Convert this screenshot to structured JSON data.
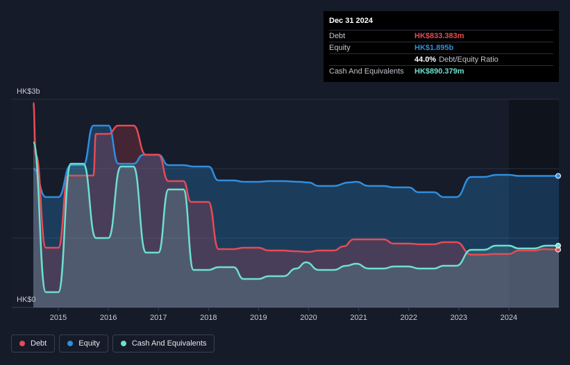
{
  "tooltip": {
    "date": "Dec 31 2024",
    "debt_label": "Debt",
    "debt_value": "HK$833.383m",
    "equity_label": "Equity",
    "equity_value": "HK$1.895b",
    "ratio_value": "44.0%",
    "ratio_label": "Debt/Equity Ratio",
    "cash_label": "Cash And Equivalents",
    "cash_value": "HK$890.379m"
  },
  "colors": {
    "debt": "#e64b55",
    "equity": "#2f8ee0",
    "cash": "#6de0d0",
    "background": "#151b28"
  },
  "legend": [
    {
      "name": "Debt",
      "color": "#e64b55"
    },
    {
      "name": "Equity",
      "color": "#2f8ee0"
    },
    {
      "name": "Cash And Equivalents",
      "color": "#6de0d0"
    }
  ],
  "chart_data": {
    "type": "area",
    "y_unit": "HK$b",
    "ylim": [
      0,
      3
    ],
    "xlim": [
      2014.5,
      2025.0
    ],
    "y_tick_labels": [
      {
        "value": 3,
        "label": "HK$3b"
      },
      {
        "value": 0,
        "label": "HK$0"
      }
    ],
    "x_tick_labels": [
      "2015",
      "2016",
      "2017",
      "2018",
      "2019",
      "2020",
      "2021",
      "2022",
      "2023",
      "2024"
    ],
    "x_ticks": [
      2015,
      2016,
      2017,
      2018,
      2019,
      2020,
      2021,
      2022,
      2023,
      2024
    ],
    "grid": "horizontal",
    "highlight_from": 2024.0,
    "series": [
      {
        "name": "Debt",
        "points": [
          [
            2014.5,
            2.95
          ],
          [
            2014.55,
            2.2
          ],
          [
            2014.75,
            0.86
          ],
          [
            2015.0,
            0.86
          ],
          [
            2015.2,
            1.9
          ],
          [
            2015.5,
            1.9
          ],
          [
            2015.7,
            1.9
          ],
          [
            2015.75,
            2.5
          ],
          [
            2016.0,
            2.5
          ],
          [
            2016.2,
            2.62
          ],
          [
            2016.5,
            2.62
          ],
          [
            2016.75,
            2.2
          ],
          [
            2017.0,
            2.2
          ],
          [
            2017.2,
            1.82
          ],
          [
            2017.5,
            1.82
          ],
          [
            2017.65,
            1.52
          ],
          [
            2018.0,
            1.52
          ],
          [
            2018.2,
            0.84
          ],
          [
            2018.5,
            0.84
          ],
          [
            2018.7,
            0.86
          ],
          [
            2019.0,
            0.86
          ],
          [
            2019.2,
            0.82
          ],
          [
            2019.5,
            0.82
          ],
          [
            2019.7,
            0.81
          ],
          [
            2020.0,
            0.8
          ],
          [
            2020.2,
            0.82
          ],
          [
            2020.5,
            0.82
          ],
          [
            2020.7,
            0.88
          ],
          [
            2020.9,
            0.98
          ],
          [
            2021.2,
            0.98
          ],
          [
            2021.5,
            0.98
          ],
          [
            2021.7,
            0.92
          ],
          [
            2022.0,
            0.92
          ],
          [
            2022.2,
            0.91
          ],
          [
            2022.5,
            0.91
          ],
          [
            2022.7,
            0.94
          ],
          [
            2022.95,
            0.94
          ],
          [
            2023.25,
            0.76
          ],
          [
            2023.5,
            0.76
          ],
          [
            2023.7,
            0.77
          ],
          [
            2024.0,
            0.77
          ],
          [
            2024.2,
            0.82
          ],
          [
            2024.5,
            0.82
          ],
          [
            2024.7,
            0.84
          ],
          [
            2025.0,
            0.833
          ]
        ]
      },
      {
        "name": "Equity",
        "points": [
          [
            2014.5,
            2.0
          ],
          [
            2014.75,
            1.59
          ],
          [
            2015.0,
            1.59
          ],
          [
            2015.25,
            2.05
          ],
          [
            2015.5,
            2.05
          ],
          [
            2015.7,
            2.62
          ],
          [
            2016.0,
            2.62
          ],
          [
            2016.2,
            2.07
          ],
          [
            2016.5,
            2.07
          ],
          [
            2016.7,
            2.2
          ],
          [
            2017.0,
            2.2
          ],
          [
            2017.2,
            2.05
          ],
          [
            2017.5,
            2.05
          ],
          [
            2017.7,
            2.03
          ],
          [
            2018.0,
            2.03
          ],
          [
            2018.2,
            1.83
          ],
          [
            2018.5,
            1.83
          ],
          [
            2018.7,
            1.81
          ],
          [
            2019.0,
            1.81
          ],
          [
            2019.2,
            1.82
          ],
          [
            2019.5,
            1.82
          ],
          [
            2019.8,
            1.81
          ],
          [
            2020.0,
            1.8
          ],
          [
            2020.2,
            1.75
          ],
          [
            2020.5,
            1.75
          ],
          [
            2020.8,
            1.8
          ],
          [
            2020.95,
            1.81
          ],
          [
            2021.2,
            1.75
          ],
          [
            2021.5,
            1.75
          ],
          [
            2021.7,
            1.73
          ],
          [
            2022.0,
            1.73
          ],
          [
            2022.2,
            1.66
          ],
          [
            2022.5,
            1.66
          ],
          [
            2022.7,
            1.59
          ],
          [
            2022.95,
            1.59
          ],
          [
            2023.25,
            1.88
          ],
          [
            2023.5,
            1.88
          ],
          [
            2023.75,
            1.91
          ],
          [
            2024.0,
            1.91
          ],
          [
            2024.2,
            1.895
          ],
          [
            2024.5,
            1.895
          ],
          [
            2025.0,
            1.895
          ]
        ]
      },
      {
        "name": "Cash And Equivalents",
        "points": [
          [
            2014.5,
            2.38
          ],
          [
            2014.75,
            0.22
          ],
          [
            2015.0,
            0.22
          ],
          [
            2015.25,
            2.07
          ],
          [
            2015.5,
            2.07
          ],
          [
            2015.75,
            1.0
          ],
          [
            2016.0,
            1.0
          ],
          [
            2016.25,
            2.03
          ],
          [
            2016.5,
            2.03
          ],
          [
            2016.75,
            0.79
          ],
          [
            2017.0,
            0.79
          ],
          [
            2017.2,
            1.7
          ],
          [
            2017.5,
            1.7
          ],
          [
            2017.7,
            0.54
          ],
          [
            2018.0,
            0.54
          ],
          [
            2018.2,
            0.58
          ],
          [
            2018.5,
            0.58
          ],
          [
            2018.7,
            0.41
          ],
          [
            2019.0,
            0.41
          ],
          [
            2019.2,
            0.45
          ],
          [
            2019.5,
            0.45
          ],
          [
            2019.75,
            0.56
          ],
          [
            2019.95,
            0.65
          ],
          [
            2020.2,
            0.54
          ],
          [
            2020.5,
            0.54
          ],
          [
            2020.75,
            0.6
          ],
          [
            2020.95,
            0.63
          ],
          [
            2021.2,
            0.56
          ],
          [
            2021.5,
            0.56
          ],
          [
            2021.7,
            0.59
          ],
          [
            2022.0,
            0.59
          ],
          [
            2022.2,
            0.56
          ],
          [
            2022.5,
            0.56
          ],
          [
            2022.7,
            0.6
          ],
          [
            2022.95,
            0.6
          ],
          [
            2023.25,
            0.83
          ],
          [
            2023.5,
            0.83
          ],
          [
            2023.75,
            0.89
          ],
          [
            2024.0,
            0.89
          ],
          [
            2024.2,
            0.85
          ],
          [
            2024.5,
            0.85
          ],
          [
            2024.75,
            0.89
          ],
          [
            2025.0,
            0.89
          ]
        ]
      }
    ]
  }
}
